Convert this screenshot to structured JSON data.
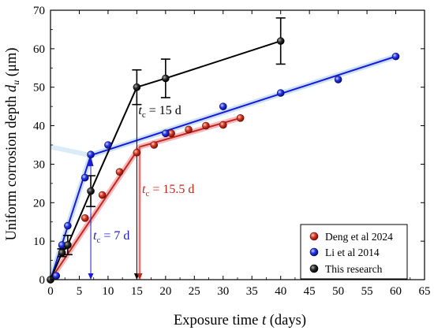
{
  "chart_data": {
    "type": "scatter",
    "xlabel_main": "Exposure time ",
    "xlabel_var": "t",
    "xlabel_unit": " (days)",
    "ylabel_main": "Uniform corrosion depth ",
    "ylabel_var": "d",
    "ylabel_sub": "u",
    "ylabel_unit": " (μm)",
    "xlim": [
      0,
      65
    ],
    "ylim": [
      0,
      70
    ],
    "x_ticks": [
      0,
      5,
      10,
      15,
      20,
      25,
      30,
      35,
      40,
      45,
      50,
      55,
      60,
      65
    ],
    "y_ticks": [
      0,
      10,
      20,
      30,
      40,
      50,
      60,
      70
    ],
    "legend_position": "bottom-right",
    "series": [
      {
        "name": "Deng et al 2024",
        "color": "#c0281c",
        "points": [
          [
            0,
            0
          ],
          [
            3,
            9
          ],
          [
            6,
            16
          ],
          [
            9,
            22
          ],
          [
            12,
            28
          ],
          [
            15,
            33
          ],
          [
            18,
            35
          ],
          [
            21,
            38
          ],
          [
            24,
            39
          ],
          [
            27,
            40
          ],
          [
            30,
            40.2
          ],
          [
            33,
            42
          ]
        ],
        "fit": [
          [
            0,
            0
          ],
          [
            15.5,
            34.5
          ],
          [
            33,
            42
          ]
        ],
        "fit_shadow_color": "#f4a0a8"
      },
      {
        "name": "Li et al 2014",
        "color": "#1a1ad8",
        "points": [
          [
            1,
            1
          ],
          [
            2,
            9
          ],
          [
            3,
            14
          ],
          [
            6,
            26.5
          ],
          [
            7,
            32.5
          ],
          [
            10,
            35
          ],
          [
            20,
            38
          ],
          [
            30,
            45
          ],
          [
            40,
            48.5
          ],
          [
            50,
            52
          ],
          [
            60,
            58
          ]
        ],
        "fit": [
          [
            0,
            0
          ],
          [
            7,
            32.3
          ],
          [
            60,
            58
          ]
        ],
        "fit_shadow_color": "#b8d8f0"
      },
      {
        "name": "This research",
        "color": "#000000",
        "points": [
          [
            0,
            0
          ],
          [
            2,
            7
          ],
          [
            3,
            9
          ],
          [
            7,
            23
          ],
          [
            15,
            50
          ],
          [
            20,
            52.3
          ],
          [
            40,
            62
          ]
        ],
        "errors": [
          0,
          1,
          2.5,
          4,
          4.5,
          5,
          6
        ],
        "fit": [
          [
            0,
            0
          ],
          [
            2,
            7
          ],
          [
            3,
            9
          ],
          [
            7,
            23
          ],
          [
            15,
            50
          ],
          [
            20,
            52.3
          ],
          [
            40,
            62
          ]
        ]
      }
    ],
    "annotations": [
      {
        "var": "t",
        "sub": "c",
        "value": " = 7 d",
        "color": "#1a1ad8",
        "x": 7
      },
      {
        "var": "t",
        "sub": "c",
        "value": " = 15 d",
        "color": "#000000",
        "x": 15
      },
      {
        "var": "t",
        "sub": "c",
        "value": " = 15.5 d",
        "color": "#c0281c",
        "x": 15.5
      }
    ]
  }
}
